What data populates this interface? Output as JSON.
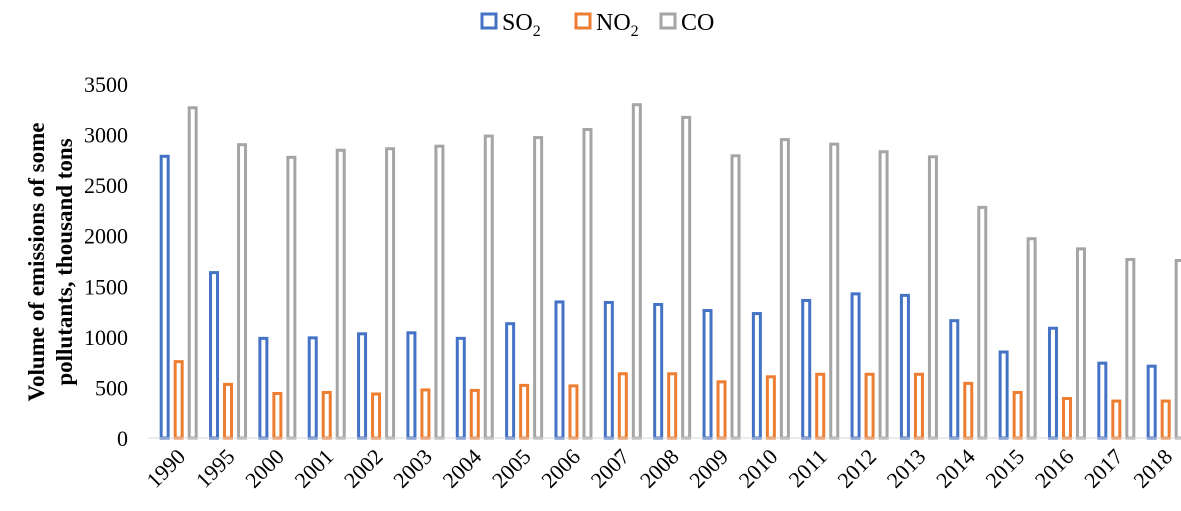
{
  "chart_data": {
    "type": "bar",
    "categories": [
      "1990",
      "1995",
      "2000",
      "2001",
      "2002",
      "2003",
      "2004",
      "2005",
      "2006",
      "2007",
      "2008",
      "2009",
      "2010",
      "2011",
      "2012",
      "2013",
      "2014",
      "2015",
      "2016",
      "2017",
      "2018"
    ],
    "series": [
      {
        "name": "SO2",
        "name_main": "SO",
        "name_sub": "2",
        "color": "#4472C4",
        "values": [
          2800,
          1650,
          1000,
          1005,
          1045,
          1055,
          1000,
          1145,
          1360,
          1355,
          1335,
          1275,
          1245,
          1375,
          1440,
          1425,
          1175,
          865,
          1100,
          755,
          725
        ]
      },
      {
        "name": "NO2",
        "name_main": "NO",
        "name_sub": "2",
        "color": "#ED7D31",
        "values": [
          770,
          545,
          455,
          465,
          450,
          490,
          485,
          535,
          530,
          650,
          650,
          570,
          620,
          645,
          645,
          645,
          555,
          465,
          405,
          380,
          380
        ]
      },
      {
        "name": "CO",
        "name_main": "CO",
        "name_sub": "",
        "color": "#A5A5A5",
        "values": [
          3280,
          2915,
          2790,
          2860,
          2875,
          2900,
          3000,
          2985,
          3065,
          3310,
          3185,
          2805,
          2965,
          2920,
          2845,
          2795,
          2295,
          1985,
          1885,
          1780,
          1770
        ]
      }
    ],
    "ylabel_line1": "Volume of emissions of some",
    "ylabel_line2": "pollutants, thousand tons",
    "ylim": [
      0,
      3500
    ],
    "yticks": [
      0,
      500,
      1000,
      1500,
      2000,
      2500,
      3000,
      3500
    ],
    "grid": false,
    "legend_position": "top-center"
  }
}
